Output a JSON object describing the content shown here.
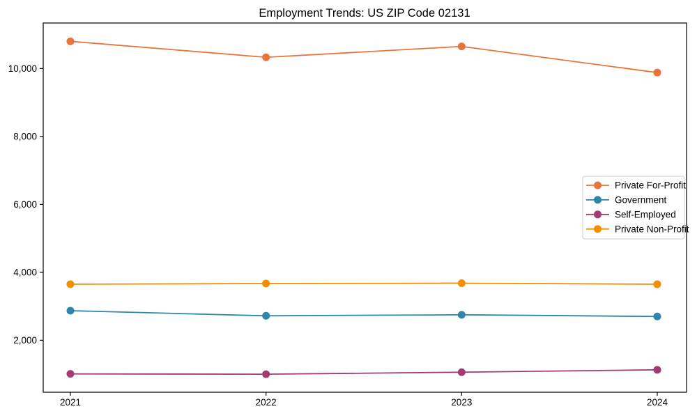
{
  "chart_data": {
    "type": "line",
    "title": "Employment Trends: US ZIP Code 02131",
    "categories": [
      "2021",
      "2022",
      "2023",
      "2024"
    ],
    "series": [
      {
        "name": "Private For-Profit",
        "color": "#E8743B",
        "values": [
          10800,
          10330,
          10650,
          9880
        ]
      },
      {
        "name": "Government",
        "color": "#2E86AB",
        "values": [
          2870,
          2720,
          2750,
          2700
        ]
      },
      {
        "name": "Self-Employed",
        "color": "#A23B72",
        "values": [
          1010,
          1000,
          1060,
          1130
        ]
      },
      {
        "name": "Private Non-Profit",
        "color": "#F18F01",
        "values": [
          3650,
          3670,
          3680,
          3650
        ]
      }
    ],
    "xlabel": "",
    "ylabel": "",
    "ylim": [
      470,
      11340
    ],
    "yticks": [
      2000,
      4000,
      6000,
      8000,
      10000
    ],
    "ytick_labels": [
      "2,000",
      "4,000",
      "6,000",
      "8,000",
      "10,000"
    ],
    "grid": false,
    "legend_position": "center right",
    "marker": "circle",
    "axis_color": "#000000",
    "legend_border_color": "#cccccc",
    "background_color": "#ffffff"
  }
}
